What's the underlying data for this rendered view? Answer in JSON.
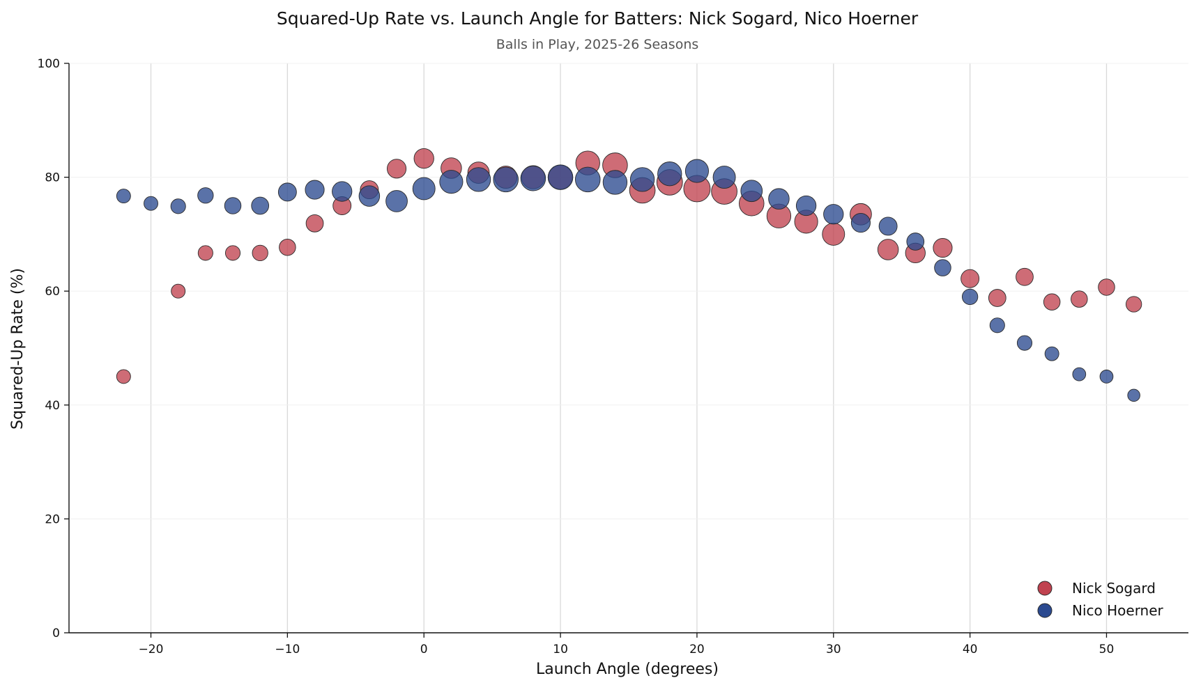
{
  "chart_data": {
    "type": "scatter",
    "title": "Squared-Up Rate vs. Launch Angle for Batters: Nick Sogard, Nico Hoerner",
    "subtitle": "Balls in Play, 2025-26 Seasons",
    "xlabel": "Launch Angle (degrees)",
    "ylabel": "Squared-Up Rate (%)",
    "xlim": [
      -26,
      56
    ],
    "ylim": [
      0,
      100
    ],
    "xticks": [
      -20,
      -10,
      0,
      10,
      20,
      30,
      40,
      50
    ],
    "xtick_labels": [
      "−20",
      "−10",
      "0",
      "10",
      "20",
      "30",
      "40",
      "50"
    ],
    "yticks": [
      0,
      20,
      40,
      60,
      80,
      100
    ],
    "ytick_labels": [
      "0",
      "20",
      "40",
      "60",
      "80",
      "100"
    ],
    "grid": {
      "x": true,
      "y": true
    },
    "legend_position": "bottom-right",
    "marker_size_varies": true,
    "series": [
      {
        "name": "Nick Sogard",
        "color": "#c0424f",
        "x": [
          -22,
          -18,
          -16,
          -14,
          -12,
          -10,
          -8,
          -6,
          -4,
          -2,
          0,
          2,
          4,
          6,
          8,
          10,
          12,
          14,
          16,
          18,
          20,
          22,
          24,
          26,
          28,
          30,
          32,
          34,
          36,
          38,
          40,
          42,
          44,
          46,
          48,
          50,
          52
        ],
        "y": [
          45.0,
          60.0,
          66.7,
          66.7,
          66.7,
          67.7,
          71.9,
          75.0,
          77.8,
          81.5,
          83.3,
          81.6,
          80.8,
          80.0,
          80.0,
          80.0,
          82.5,
          82.1,
          77.7,
          79.1,
          78.0,
          77.5,
          75.4,
          73.2,
          72.2,
          70.0,
          73.5,
          67.3,
          66.7,
          67.6,
          62.2,
          58.8,
          62.5,
          58.1,
          58.6,
          60.7,
          57.7
        ],
        "size": [
          0.25,
          0.25,
          0.3,
          0.3,
          0.35,
          0.4,
          0.45,
          0.5,
          0.5,
          0.55,
          0.6,
          0.65,
          0.7,
          0.75,
          0.8,
          0.85,
          0.85,
          0.9,
          0.95,
          0.95,
          1.0,
          0.95,
          0.9,
          0.85,
          0.8,
          0.75,
          0.7,
          0.65,
          0.6,
          0.55,
          0.5,
          0.45,
          0.45,
          0.4,
          0.4,
          0.4,
          0.35
        ]
      },
      {
        "name": "Nico Hoerner",
        "color": "#2b4a90",
        "x": [
          -22,
          -20,
          -18,
          -16,
          -14,
          -12,
          -10,
          -8,
          -6,
          -4,
          -2,
          0,
          2,
          4,
          6,
          8,
          10,
          12,
          14,
          16,
          18,
          20,
          22,
          24,
          26,
          28,
          30,
          32,
          34,
          36,
          38,
          40,
          42,
          44,
          46,
          48,
          50,
          52
        ],
        "y": [
          76.7,
          75.4,
          74.9,
          76.8,
          75.0,
          75.0,
          77.4,
          77.8,
          77.5,
          76.7,
          75.8,
          78.0,
          79.2,
          79.6,
          79.6,
          79.8,
          80.0,
          79.6,
          79.1,
          79.6,
          80.6,
          81.1,
          80.0,
          77.6,
          76.2,
          75.0,
          73.5,
          72.0,
          71.4,
          68.7,
          64.1,
          59.0,
          54.0,
          50.9,
          49.0,
          45.4,
          45.0,
          41.7
        ],
        "size": [
          0.25,
          0.25,
          0.3,
          0.35,
          0.4,
          0.45,
          0.5,
          0.55,
          0.6,
          0.65,
          0.7,
          0.75,
          0.8,
          0.85,
          0.9,
          0.9,
          0.9,
          0.9,
          0.85,
          0.85,
          0.85,
          0.8,
          0.75,
          0.7,
          0.65,
          0.6,
          0.6,
          0.55,
          0.5,
          0.45,
          0.4,
          0.35,
          0.3,
          0.3,
          0.25,
          0.2,
          0.2,
          0.15
        ]
      }
    ]
  }
}
